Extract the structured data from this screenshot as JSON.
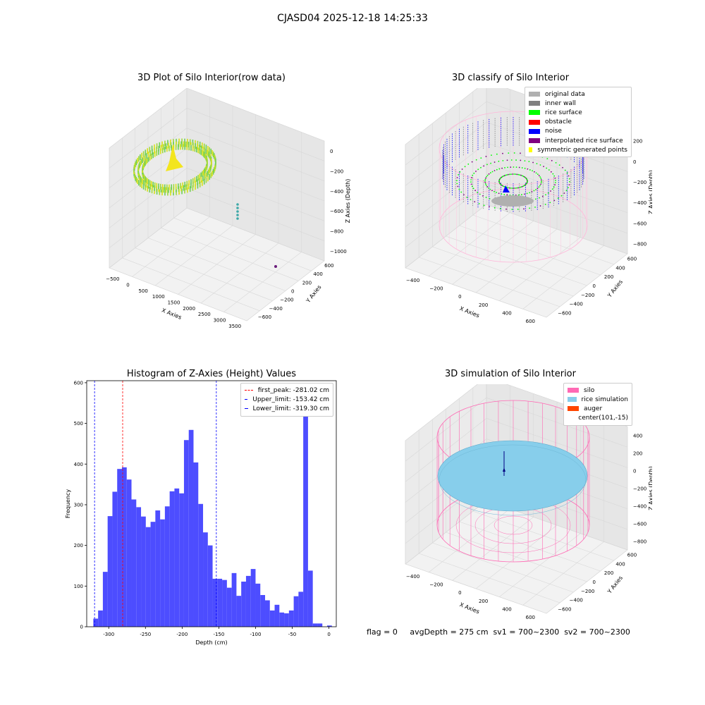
{
  "suptitle": "CJASD04 2025-12-18 14:25:33",
  "status_text": "flag = 0     avgDepth = 275 cm  sv1 = 700~2300  sv2 = 700~2300",
  "colors": {
    "hist_bar": "#4d4dff",
    "silo": "#ff69b4",
    "rice_simulation": "#87ceeb",
    "auger": "#ff4500",
    "original_data": "#b0b0b0",
    "inner_wall": "#808080",
    "rice_surface": "#00ff00",
    "obstacle": "#ff0000",
    "noise": "#0000ff",
    "interpolated": "#800080",
    "symmetric": "#ffff00"
  },
  "chart_data": [
    {
      "type": "scatter3d",
      "title": "3D Plot of Silo Interior(row data)",
      "xlabel": "X Axies",
      "ylabel": "Y Axies",
      "zlabel": "Z Axies (Depth)",
      "x_ticks": [
        "−500",
        "0",
        "500",
        "1000",
        "1500",
        "2000",
        "2500",
        "3000",
        "3500"
      ],
      "y_ticks": [
        "−600",
        "−400",
        "−200",
        "0",
        "200",
        "400",
        "600"
      ],
      "z_ticks": [
        "0",
        "−200",
        "−400",
        "−600",
        "−800",
        "−1000"
      ],
      "colormap": "viridis-yellow-green",
      "note_points": [
        {
          "x": 1000,
          "y": 0,
          "z": -800
        },
        {
          "x": 3200,
          "y": 300,
          "z": -1000
        }
      ]
    },
    {
      "type": "scatter3d",
      "title": "3D classify of Silo Interior",
      "xlabel": "X Axies",
      "ylabel": "Y Axies",
      "zlabel": "Z Axies (Depth)",
      "x_ticks": [
        "−400",
        "−200",
        "0",
        "200",
        "400",
        "600"
      ],
      "y_ticks": [
        "−600",
        "−400",
        "−200",
        "0",
        "200",
        "400",
        "600"
      ],
      "z_ticks": [
        "200",
        "0",
        "−200",
        "−400",
        "−600",
        "−800"
      ],
      "z_ticks_partial_top": "00",
      "legend": [
        {
          "label": "original data",
          "color": "#b0b0b0"
        },
        {
          "label": "inner wall",
          "color": "#808080"
        },
        {
          "label": "rice surface",
          "color": "#00ff00"
        },
        {
          "label": "obstacle",
          "color": "#ff0000"
        },
        {
          "label": "noise",
          "color": "#0000ff"
        },
        {
          "label": "interpolated rice surface",
          "color": "#800080"
        },
        {
          "label": "symmetric generated points",
          "color": "#ffff00"
        }
      ]
    },
    {
      "type": "histogram",
      "title": "Histogram of Z-Axies (Height) Values",
      "xlabel": "Depth (cm)",
      "ylabel": "Frequency",
      "xlim": [
        -330,
        10
      ],
      "ylim": [
        0,
        605
      ],
      "x_ticks": [
        -300,
        -250,
        -200,
        -150,
        -100,
        -50,
        0
      ],
      "y_ticks": [
        0,
        100,
        200,
        300,
        400,
        500,
        600
      ],
      "bin_width": 6.5,
      "bins": [
        {
          "x0": -321.0,
          "count": 20
        },
        {
          "x0": -314.5,
          "count": 40
        },
        {
          "x0": -308.0,
          "count": 135
        },
        {
          "x0": -301.5,
          "count": 272
        },
        {
          "x0": -295.0,
          "count": 332
        },
        {
          "x0": -288.5,
          "count": 388
        },
        {
          "x0": -282.0,
          "count": 392
        },
        {
          "x0": -275.5,
          "count": 362
        },
        {
          "x0": -269.0,
          "count": 313
        },
        {
          "x0": -262.5,
          "count": 294
        },
        {
          "x0": -256.0,
          "count": 271
        },
        {
          "x0": -249.5,
          "count": 245
        },
        {
          "x0": -243.0,
          "count": 258
        },
        {
          "x0": -236.5,
          "count": 286
        },
        {
          "x0": -230.0,
          "count": 264
        },
        {
          "x0": -223.5,
          "count": 296
        },
        {
          "x0": -217.0,
          "count": 333
        },
        {
          "x0": -210.5,
          "count": 340
        },
        {
          "x0": -204.0,
          "count": 328
        },
        {
          "x0": -197.5,
          "count": 459
        },
        {
          "x0": -191.0,
          "count": 484
        },
        {
          "x0": -184.5,
          "count": 404
        },
        {
          "x0": -178.0,
          "count": 302
        },
        {
          "x0": -171.5,
          "count": 232
        },
        {
          "x0": -165.0,
          "count": 200
        },
        {
          "x0": -158.5,
          "count": 118
        },
        {
          "x0": -152.0,
          "count": 118
        },
        {
          "x0": -145.5,
          "count": 115
        },
        {
          "x0": -139.0,
          "count": 96
        },
        {
          "x0": -132.5,
          "count": 132
        },
        {
          "x0": -126.0,
          "count": 76
        },
        {
          "x0": -119.5,
          "count": 111
        },
        {
          "x0": -113.0,
          "count": 125
        },
        {
          "x0": -106.5,
          "count": 142
        },
        {
          "x0": -100.0,
          "count": 106
        },
        {
          "x0": -93.5,
          "count": 78
        },
        {
          "x0": -87.0,
          "count": 65
        },
        {
          "x0": -80.5,
          "count": 40
        },
        {
          "x0": -74.0,
          "count": 54
        },
        {
          "x0": -67.5,
          "count": 35
        },
        {
          "x0": -61.0,
          "count": 33
        },
        {
          "x0": -54.5,
          "count": 40
        },
        {
          "x0": -48.0,
          "count": 75
        },
        {
          "x0": -41.5,
          "count": 86
        },
        {
          "x0": -35.0,
          "count": 576
        },
        {
          "x0": -28.5,
          "count": 138
        },
        {
          "x0": -22.0,
          "count": 8
        },
        {
          "x0": -15.5,
          "count": 8
        },
        {
          "x0": -9.0,
          "count": 0
        },
        {
          "x0": -2.5,
          "count": 3
        }
      ],
      "lines": [
        {
          "label": "first_peak: -281.02 cm",
          "x": -281.02,
          "color": "#ff0000"
        },
        {
          "label": "Upper_limit: -153.42 cm",
          "x": -153.42,
          "color": "#0000ff"
        },
        {
          "label": "Lower_limit: -319.30 cm",
          "x": -319.3,
          "color": "#0000ff"
        }
      ]
    },
    {
      "type": "surface3d",
      "title": "3D simulation of Silo Interior",
      "xlabel": "X Axies",
      "ylabel": "Y Axies",
      "zlabel": "Z Axies (Depth)",
      "x_ticks": [
        "−400",
        "−200",
        "0",
        "200",
        "400",
        "600"
      ],
      "y_ticks": [
        "−600",
        "−400",
        "−200",
        "0",
        "200",
        "400",
        "600"
      ],
      "z_ticks": [
        "400",
        "200",
        "0",
        "−200",
        "−400",
        "−600",
        "−800"
      ],
      "legend": [
        {
          "label": "silo",
          "color": "#ff69b4"
        },
        {
          "label": "rice simulation",
          "color": "#87ceeb"
        },
        {
          "label": "auger",
          "color": "#ff4500"
        },
        {
          "label": "center(101,-15)",
          "color": ""
        }
      ]
    }
  ]
}
